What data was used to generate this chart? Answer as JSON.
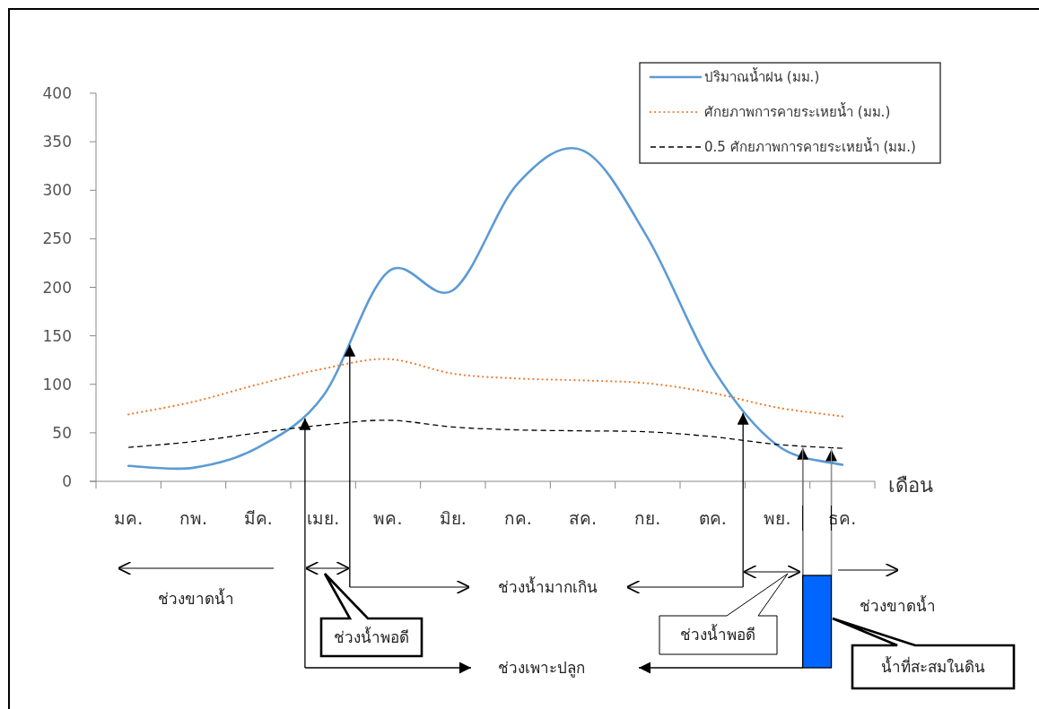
{
  "chart_data": {
    "type": "line",
    "categories": [
      "มค.",
      "กพ.",
      "มีค.",
      "เมย.",
      "พค.",
      "มิย.",
      "กค.",
      "สค.",
      "กย.",
      "ตค.",
      "พย.",
      "ธค."
    ],
    "xlabel": "เดือน",
    "ylim": [
      0,
      400
    ],
    "yticks": [
      0,
      50,
      100,
      150,
      200,
      250,
      300,
      350,
      400
    ],
    "grid": false,
    "legend": "top right",
    "marker": "none",
    "series": [
      {
        "name": "ปริมาณน้ำฝน (มม.)",
        "color": "#5b9bd5",
        "line_style": "solid",
        "values": [
          16,
          14,
          35,
          88,
          216,
          197,
          307,
          341,
          251,
          117,
          37,
          17
        ]
      },
      {
        "name": "ศักยภาพการคายระเหยน้ำ (มม.)",
        "color": "#ed7d31",
        "line_style": "dotted",
        "values": [
          69,
          82,
          100,
          116,
          126,
          111,
          106,
          104,
          101,
          91,
          76,
          67
        ]
      },
      {
        "name": "0.5 ศักยภาพการคายระเหยน้ำ (มม.)",
        "color": "#000000",
        "line_style": "dashed",
        "values": [
          35,
          41,
          50,
          58,
          63,
          56,
          53,
          52,
          51,
          46,
          38,
          34
        ]
      }
    ],
    "annotations": [
      "ช่วงขาดน้ำ",
      "ช่วงน้ำพอดี",
      "ช่วงน้ำมากเกิน",
      "ช่วงเพาะปลูก",
      "ช่วงน้ำพอดี",
      "ช่วงขาดน้ำ",
      "น้ำที่สะสมในดิน"
    ]
  }
}
